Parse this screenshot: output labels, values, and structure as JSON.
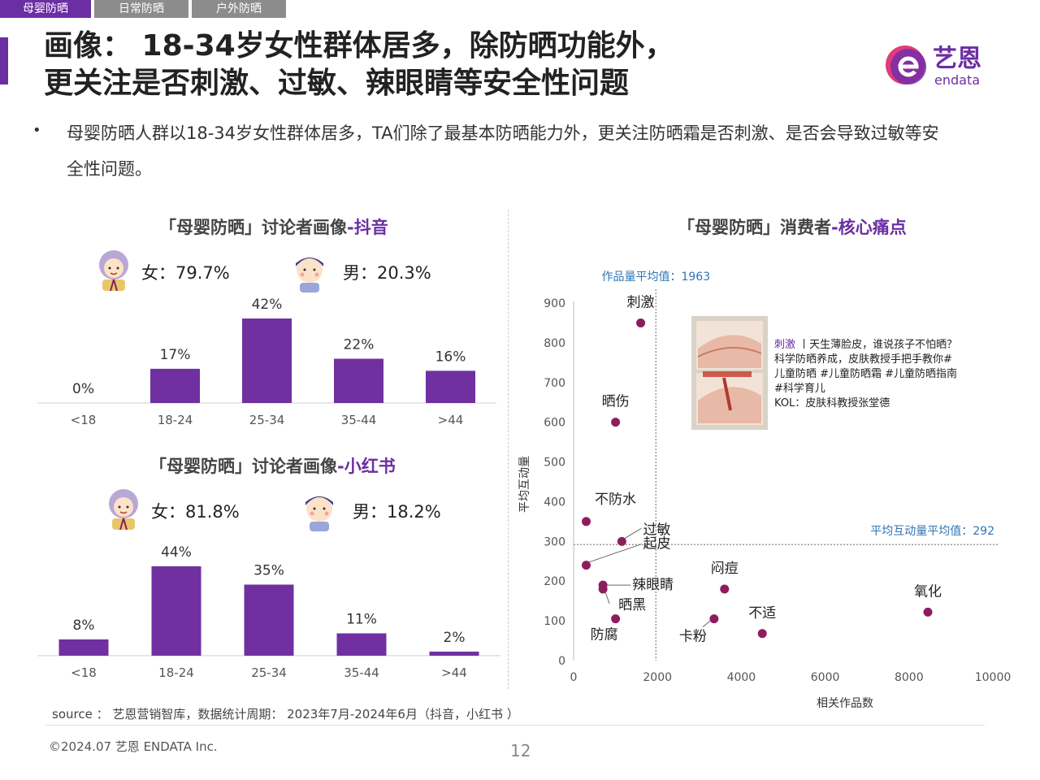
{
  "tabs": [
    "母婴防晒",
    "日常防晒",
    "户外防晒"
  ],
  "title": {
    "line1": "画像： 18-34岁女性群体居多，除防晒功能外，",
    "line2": "更关注是否刺激、过敏、辣眼睛等安全性问题"
  },
  "logo": {
    "text": "艺恩",
    "sub": "endata"
  },
  "bullet": "母婴防晒人群以18-34岁女性群体居多，TA们除了最基本防晒能力外，更关注防晒霜是否刺激、是否会导致过敏等安全性问题。",
  "douyin": {
    "title_prefix": "「母婴防晒」讨论者画像",
    "title_hl": "-抖音",
    "female": "女：79.7%",
    "male": "男：20.3%"
  },
  "xhs": {
    "title_prefix": "「母婴防晒」讨论者画像",
    "title_hl": "-小红书",
    "female": "女：81.8%",
    "male": "男：18.2%"
  },
  "pain": {
    "title_prefix": "「母婴防晒」消费者",
    "title_hl": "-核心痛点"
  },
  "post": {
    "keyword": "刺激",
    "line1": " 丨天生薄脸皮，谁说孩子不怕晒？",
    "line2": "科学防晒养成，皮肤教授手把手教你#",
    "line3": "儿童防晒 #儿童防晒霜 #儿童防晒指南",
    "line4": "#科学育儿",
    "line5": "KOL：皮肤科教授张堂德"
  },
  "colors": {
    "accent": "#6b2ea3",
    "bar": "#7030a0",
    "dot": "#8e1d5f",
    "ref_label": "#2e75b6"
  },
  "chart_data": [
    {
      "type": "bar",
      "categories": [
        "<18",
        "18-24",
        "25-34",
        "35-44",
        ">44"
      ],
      "values": [
        0,
        17,
        42,
        22,
        16
      ],
      "data_labels": [
        "0%",
        "17%",
        "42%",
        "22%",
        "16%"
      ]
    },
    {
      "type": "bar",
      "categories": [
        "<18",
        "18-24",
        "25-34",
        "35-44",
        ">44"
      ],
      "values": [
        8,
        44,
        35,
        11,
        2
      ],
      "data_labels": [
        "8%",
        "44%",
        "35%",
        "11%",
        "2%"
      ]
    },
    {
      "type": "scatter",
      "xlabel": "相关作品数",
      "ylabel": "平均互动量",
      "xlim": [
        0,
        10000
      ],
      "ylim": [
        0,
        900
      ],
      "xticks": [
        0,
        2000,
        4000,
        6000,
        8000,
        10000
      ],
      "yticks": [
        0,
        100,
        200,
        300,
        400,
        500,
        600,
        700,
        800,
        900
      ],
      "ref_x": {
        "value": 1963,
        "label": "作品量平均值：1963"
      },
      "ref_y": {
        "value": 292,
        "label": "平均互动量平均值：292"
      },
      "points": [
        {
          "label": "刺激",
          "x": 1600,
          "y": 850
        },
        {
          "label": "晒伤",
          "x": 1000,
          "y": 600
        },
        {
          "label": "不防水",
          "x": 300,
          "y": 350
        },
        {
          "label": "过敏",
          "x": 1150,
          "y": 300
        },
        {
          "label": "起皮",
          "x": 300,
          "y": 240
        },
        {
          "label": "辣眼睛",
          "x": 700,
          "y": 190
        },
        {
          "label": "晒黑",
          "x": 700,
          "y": 180
        },
        {
          "label": "防腐",
          "x": 1000,
          "y": 105
        },
        {
          "label": "闷痘",
          "x": 3600,
          "y": 180
        },
        {
          "label": "卡粉",
          "x": 3350,
          "y": 105
        },
        {
          "label": "不适",
          "x": 4500,
          "y": 68
        },
        {
          "label": "氧化",
          "x": 8450,
          "y": 122
        }
      ]
    }
  ],
  "source": "source ： 艺恩营销智库，数据统计周期： 2023年7月-2024年6月（抖音，小红书 ）",
  "copyright": "©2024.07  艺恩 ENDATA Inc.",
  "page_number": "12"
}
